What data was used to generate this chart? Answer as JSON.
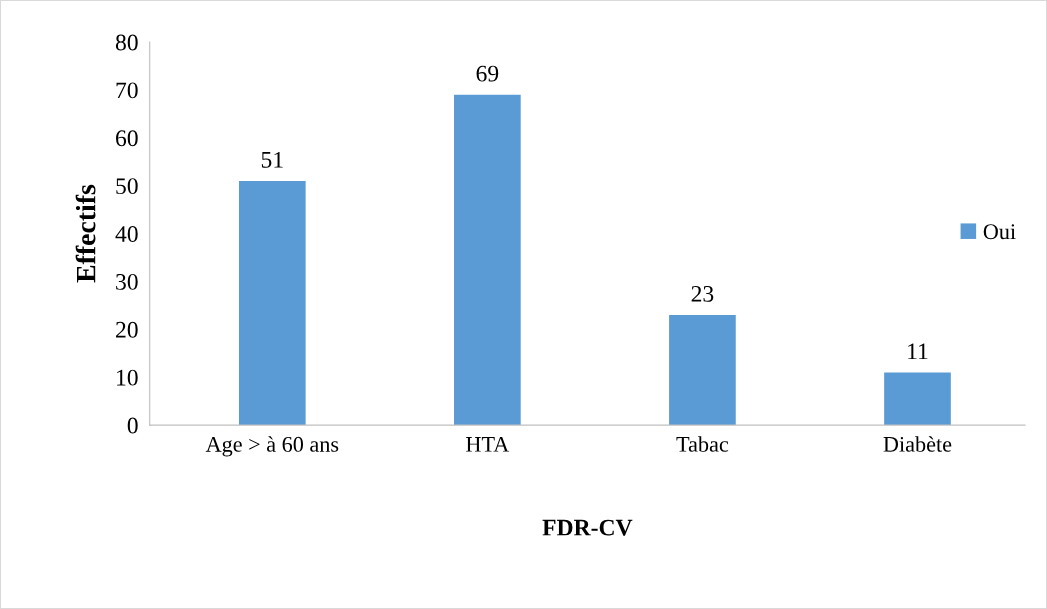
{
  "chart_data": {
    "type": "bar",
    "xlabel": "FDR-CV",
    "ylabel": "Effectifs",
    "categories": [
      "Age > à 60 ans",
      "HTA",
      "Tabac",
      "Diabète"
    ],
    "series": [
      {
        "name": "Oui",
        "color": "#5b9bd5",
        "values": [
          51,
          69,
          23,
          11
        ]
      }
    ],
    "ylim": [
      0,
      80
    ],
    "yticks": [
      0,
      10,
      20,
      30,
      40,
      50,
      60,
      70,
      80
    ],
    "data_labels": true,
    "grid": false,
    "legend": "right"
  }
}
